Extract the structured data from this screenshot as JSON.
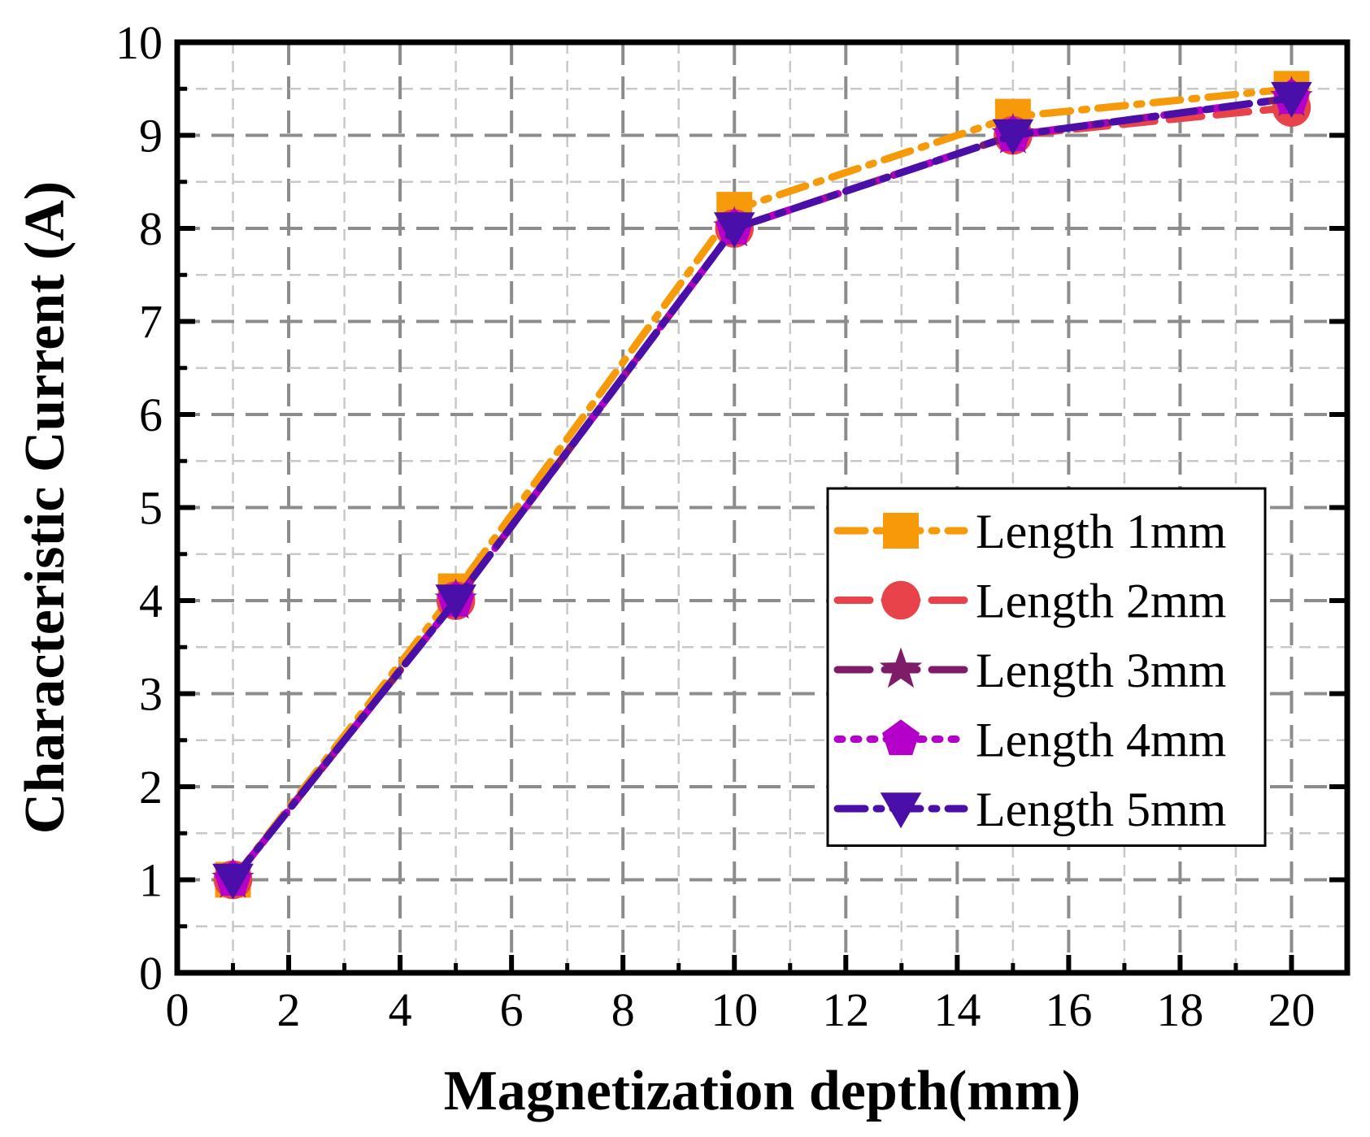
{
  "chart_data": {
    "type": "line",
    "xlabel": "Magnetization depth(mm)",
    "ylabel": "Characteristic Current (A)",
    "xlim": [
      0,
      21
    ],
    "ylim": [
      0,
      10
    ],
    "xticks": [
      0,
      2,
      4,
      6,
      8,
      10,
      12,
      14,
      16,
      18,
      20
    ],
    "yticks": [
      0,
      1,
      2,
      3,
      4,
      5,
      6,
      7,
      8,
      9,
      10
    ],
    "grid": true,
    "legend_position": "center-right",
    "x": [
      1,
      5,
      10,
      15,
      20
    ],
    "series": [
      {
        "name": "Length 1mm",
        "values": [
          1.0,
          4.1,
          8.2,
          9.2,
          9.5
        ],
        "color": "#F79A0A",
        "marker": "square",
        "dash": "dash-dot"
      },
      {
        "name": "Length 2mm",
        "values": [
          1.0,
          4.0,
          8.0,
          9.0,
          9.3
        ],
        "color": "#E8424A",
        "marker": "circle",
        "dash": "dash"
      },
      {
        "name": "Length 3mm",
        "values": [
          1.0,
          4.0,
          8.0,
          9.0,
          9.4
        ],
        "color": "#7E1C6A",
        "marker": "star",
        "dash": "dash"
      },
      {
        "name": "Length 4mm",
        "values": [
          1.0,
          4.0,
          8.0,
          9.0,
          9.4
        ],
        "color": "#B400C8",
        "marker": "pentagon",
        "dash": "dot"
      },
      {
        "name": "Length 5mm",
        "values": [
          1.0,
          4.0,
          8.0,
          9.0,
          9.4
        ],
        "color": "#4A0FA8",
        "marker": "triangle-down",
        "dash": "dash-dot"
      }
    ]
  }
}
